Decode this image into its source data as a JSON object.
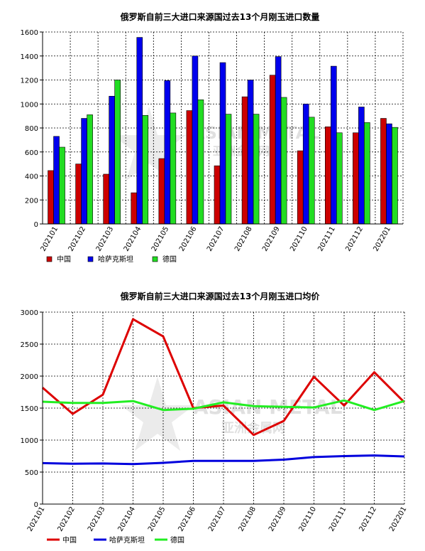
{
  "chart_data": [
    {
      "type": "bar",
      "title": "俄罗斯自前三大进口来源国过去13个月刚玉进口数量",
      "categories": [
        "202101",
        "202102",
        "202103",
        "202104",
        "202105",
        "202106",
        "202107",
        "202108",
        "202109",
        "202110",
        "202111",
        "202112",
        "202201"
      ],
      "ylim": [
        0,
        1600
      ],
      "yticks": [
        0,
        200,
        400,
        600,
        800,
        1000,
        1200,
        1400,
        1600
      ],
      "grid": true,
      "legend_position": "bottom-left",
      "series": [
        {
          "name": "中国",
          "color": "#cc0000",
          "values": [
            445,
            500,
            415,
            260,
            545,
            945,
            485,
            1060,
            1240,
            610,
            810,
            760,
            880
          ]
        },
        {
          "name": "哈萨克斯坦",
          "color": "#0000ee",
          "values": [
            730,
            880,
            1065,
            1555,
            1195,
            1400,
            1345,
            1200,
            1395,
            1000,
            1315,
            975,
            835
          ]
        },
        {
          "name": "德国",
          "color": "#22dd22",
          "values": [
            640,
            910,
            1200,
            905,
            925,
            1035,
            915,
            915,
            1055,
            890,
            760,
            845,
            805
          ]
        }
      ]
    },
    {
      "type": "line",
      "title": "俄罗斯自前三大进口来源国过去13个月刚玉进口均价",
      "categories": [
        "202101",
        "202102",
        "202103",
        "202104",
        "202105",
        "202106",
        "202107",
        "202108",
        "202109",
        "202110",
        "202111",
        "202112",
        "202201"
      ],
      "ylim": [
        0,
        3000
      ],
      "yticks": [
        0,
        500,
        1000,
        1500,
        2000,
        2500,
        3000
      ],
      "grid": true,
      "legend_position": "bottom-left",
      "series": [
        {
          "name": "中国",
          "color": "#dd0000",
          "values": [
            1820,
            1410,
            1710,
            2890,
            2620,
            1500,
            1540,
            1080,
            1300,
            1990,
            1540,
            2060,
            1590
          ]
        },
        {
          "name": "哈萨克斯坦",
          "color": "#0000dd",
          "values": [
            640,
            630,
            635,
            625,
            645,
            675,
            675,
            675,
            695,
            735,
            750,
            760,
            745
          ]
        },
        {
          "name": "德国",
          "color": "#22ee22",
          "values": [
            1600,
            1580,
            1580,
            1610,
            1470,
            1490,
            1590,
            1530,
            1520,
            1510,
            1620,
            1470,
            1610
          ]
        }
      ]
    }
  ],
  "watermark": {
    "main": "ASIAN METAL",
    "sub": "亚洲金属网"
  }
}
